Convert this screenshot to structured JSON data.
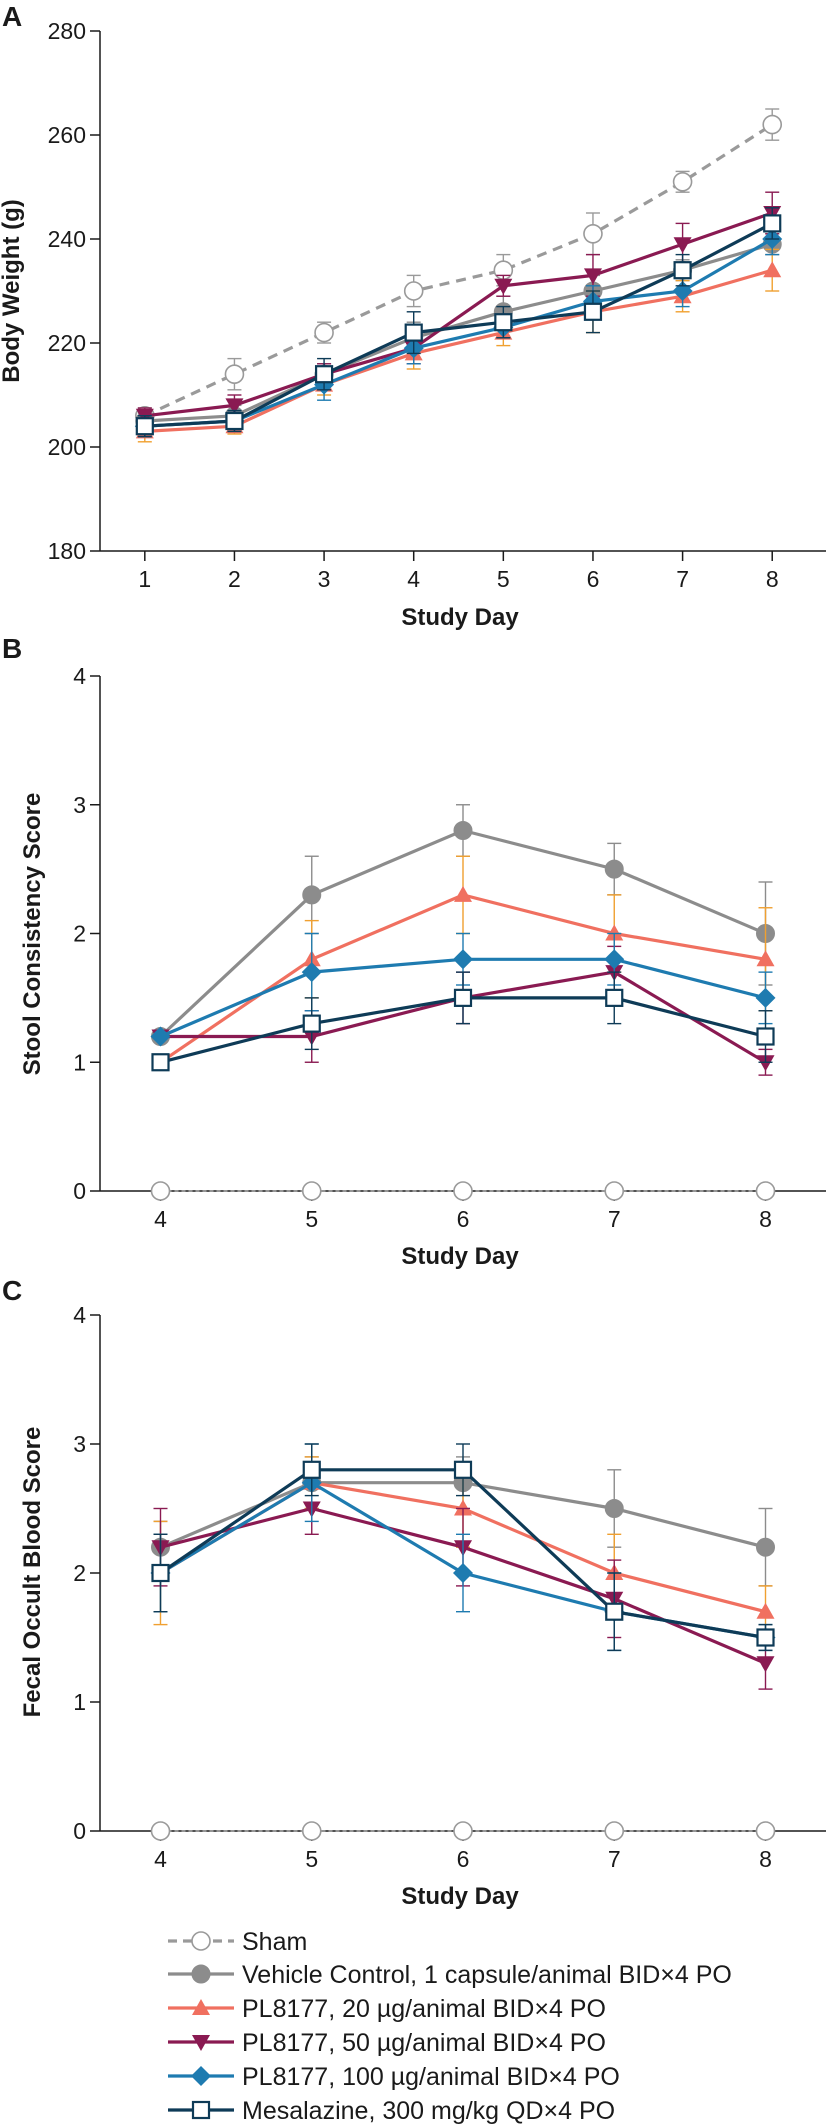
{
  "series_styles": [
    {
      "key": "sham",
      "color": "#8c8c8c",
      "marker": "circle-open",
      "dashed": true
    },
    {
      "key": "vehicle",
      "color": "#8c8c8c",
      "marker": "circle-filled",
      "dashed": false
    },
    {
      "key": "pl20",
      "color": "#f07060",
      "marker": "triangle-up",
      "dashed": false
    },
    {
      "key": "pl50",
      "color": "#8a1a52",
      "marker": "triangle-down",
      "dashed": false
    },
    {
      "key": "pl100",
      "color": "#1e7bb0",
      "marker": "diamond",
      "dashed": false
    },
    {
      "key": "mesa",
      "color": "#0e3b57",
      "marker": "square-open",
      "dashed": false
    }
  ],
  "error_bar_color": "#f0a030",
  "legend": [
    "Sham",
    "Vehicle Control, 1 capsule/animal BID×4 PO",
    "PL8177, 20 µg/animal BID×4 PO",
    "PL8177, 50 µg/animal BID×4 PO",
    "PL8177, 100 µg/animal BID×4 PO",
    "Mesalazine, 300 mg/kg QD×4 PO"
  ],
  "chart_data": [
    {
      "panel": "A",
      "type": "line",
      "title": "",
      "xlabel": "Study Day",
      "ylabel": "Body Weight (g)",
      "x": [
        1,
        2,
        3,
        4,
        5,
        6,
        7,
        8
      ],
      "xlim": [
        0.5,
        8.6
      ],
      "ylim": [
        180,
        280
      ],
      "yticks": [
        180,
        200,
        220,
        240,
        260,
        280
      ],
      "xticks": [
        1,
        2,
        3,
        4,
        5,
        6,
        7,
        8
      ],
      "series": [
        {
          "name": "Sham",
          "values": [
            206,
            214,
            222,
            230,
            234,
            241,
            251,
            262
          ],
          "err": [
            1.5,
            3,
            2,
            3,
            3,
            4,
            2,
            3
          ]
        },
        {
          "name": "Vehicle Control, 1 capsule/animal BID×4 PO",
          "values": [
            205,
            206,
            214,
            221,
            226,
            230,
            234,
            239
          ],
          "err": [
            1.5,
            2,
            2,
            3,
            3,
            3,
            2,
            2
          ]
        },
        {
          "name": "PL8177, 20 µg/animal BID×4 PO",
          "values": [
            203,
            204,
            212,
            218,
            222,
            226,
            229,
            234
          ],
          "err": [
            2,
            1.5,
            2,
            3,
            2.5,
            4,
            3,
            4
          ]
        },
        {
          "name": "PL8177, 50 µg/animal BID×4 PO",
          "values": [
            206,
            208,
            214,
            219,
            231,
            233,
            239,
            245
          ],
          "err": [
            1.5,
            2,
            2,
            3,
            2,
            4,
            4,
            4
          ]
        },
        {
          "name": "PL8177, 100 µg/animal BID×4 PO",
          "values": [
            204,
            205,
            212,
            219,
            223,
            228,
            230,
            240
          ],
          "err": [
            2,
            2,
            3,
            3,
            2,
            3,
            3,
            3
          ]
        },
        {
          "name": "Mesalazine, 300 mg/kg QD×4 PO",
          "values": [
            204,
            205,
            214,
            222,
            224,
            226,
            234,
            243
          ],
          "err": [
            2,
            2,
            3,
            4,
            3,
            4,
            3,
            3
          ]
        }
      ]
    },
    {
      "panel": "B",
      "type": "line",
      "title": "",
      "xlabel": "Study Day",
      "ylabel": "Stool Consistency Score",
      "x": [
        4,
        5,
        6,
        7,
        8
      ],
      "xlim": [
        3.6,
        8.4
      ],
      "ylim": [
        0,
        4
      ],
      "yticks": [
        0,
        1,
        2,
        3,
        4
      ],
      "xticks": [
        4,
        5,
        6,
        7,
        8
      ],
      "series": [
        {
          "name": "Sham",
          "values": [
            0,
            0,
            0,
            0,
            0
          ],
          "err": [
            0,
            0,
            0,
            0,
            0
          ]
        },
        {
          "name": "Vehicle Control, 1 capsule/animal BID×4 PO",
          "values": [
            1.2,
            2.3,
            2.8,
            2.5,
            2.0
          ],
          "err": [
            0,
            0.3,
            0.2,
            0.2,
            0.4
          ]
        },
        {
          "name": "PL8177, 20 µg/animal BID×4 PO",
          "values": [
            1.0,
            1.8,
            2.3,
            2.0,
            1.8
          ],
          "err": [
            0,
            0.3,
            0.3,
            0.3,
            0.4
          ]
        },
        {
          "name": "PL8177, 50 µg/animal BID×4 PO",
          "values": [
            1.2,
            1.2,
            1.5,
            1.7,
            1.0
          ],
          "err": [
            0,
            0.2,
            0.2,
            0.2,
            0.1
          ]
        },
        {
          "name": "PL8177, 100 µg/animal BID×4 PO",
          "values": [
            1.2,
            1.7,
            1.8,
            1.8,
            1.5
          ],
          "err": [
            0,
            0.3,
            0.2,
            0.2,
            0.2
          ]
        },
        {
          "name": "Mesalazine, 300 mg/kg QD×4 PO",
          "values": [
            1.0,
            1.3,
            1.5,
            1.5,
            1.2
          ],
          "err": [
            0,
            0.2,
            0.2,
            0.2,
            0.2
          ]
        }
      ]
    },
    {
      "panel": "C",
      "type": "line",
      "title": "",
      "xlabel": "Study Day",
      "ylabel": "Fecal Occult Blood Score",
      "x": [
        4,
        5,
        6,
        7,
        8
      ],
      "xlim": [
        3.6,
        8.4
      ],
      "ylim": [
        0,
        4
      ],
      "yticks": [
        0,
        1,
        2,
        3,
        4
      ],
      "xticks": [
        4,
        5,
        6,
        7,
        8
      ],
      "series": [
        {
          "name": "Sham",
          "values": [
            0,
            0,
            0,
            0,
            0
          ],
          "err": [
            0,
            0,
            0,
            0,
            0
          ]
        },
        {
          "name": "Vehicle Control, 1 capsule/animal BID×4 PO",
          "values": [
            2.2,
            2.7,
            2.7,
            2.5,
            2.2
          ],
          "err": [
            0.2,
            0.2,
            0.2,
            0.3,
            0.3
          ]
        },
        {
          "name": "PL8177, 20 µg/animal BID×4 PO",
          "values": [
            2.0,
            2.7,
            2.5,
            2.0,
            1.7
          ],
          "err": [
            0.4,
            0.2,
            0.3,
            0.3,
            0.2
          ]
        },
        {
          "name": "PL8177, 50 µg/animal BID×4 PO",
          "values": [
            2.2,
            2.5,
            2.2,
            1.8,
            1.3
          ],
          "err": [
            0.3,
            0.2,
            0.3,
            0.3,
            0.2
          ]
        },
        {
          "name": "PL8177, 100 µg/animal BID×4 PO",
          "values": [
            2.0,
            2.7,
            2.0,
            1.7,
            1.5
          ],
          "err": [
            0.3,
            0.3,
            0.3,
            0.3,
            0.1
          ]
        },
        {
          "name": "Mesalazine, 300 mg/kg QD×4 PO",
          "values": [
            2.0,
            2.8,
            2.8,
            1.7,
            1.5
          ],
          "err": [
            0.3,
            0.2,
            0.2,
            0.3,
            0.1
          ]
        }
      ]
    }
  ]
}
